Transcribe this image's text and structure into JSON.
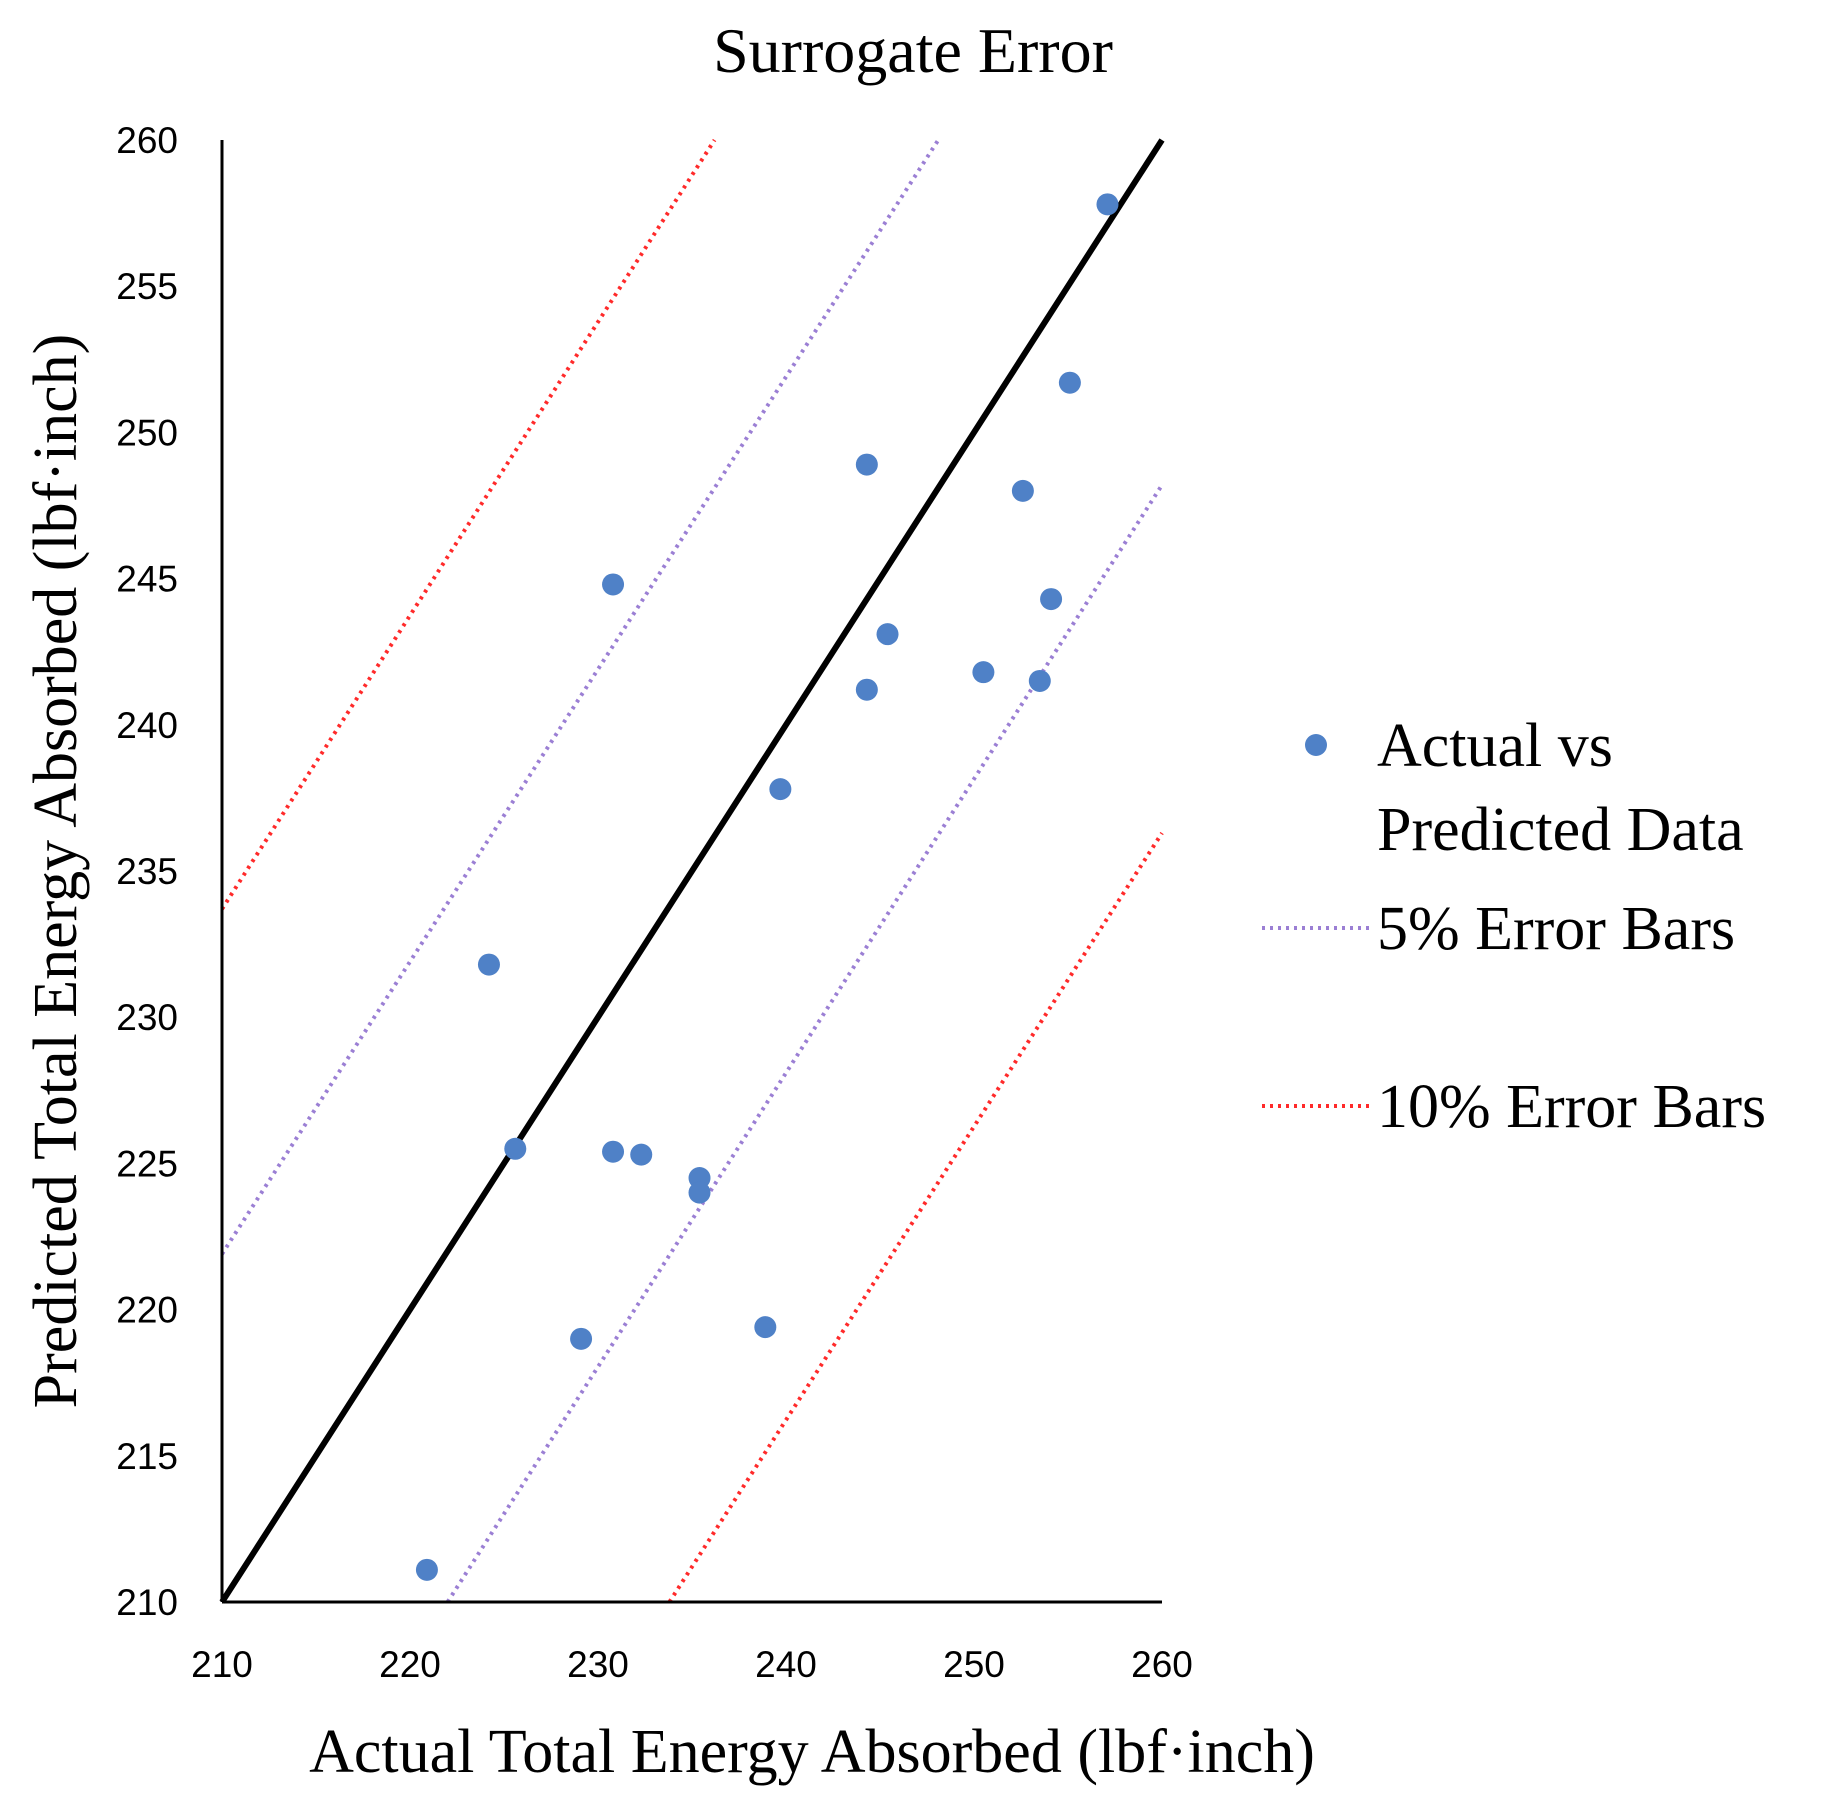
{
  "chart_data": {
    "type": "scatter",
    "title": "Surrogate Error",
    "xlabel": "Actual Total Energy Absorbed (lbf·inch)",
    "ylabel": "Predicted Total Energy Absorbed (lbf·inch)",
    "xlim": [
      210,
      260
    ],
    "ylim": [
      210,
      260
    ],
    "x_ticks": [
      "210",
      "220",
      "230",
      "240",
      "250",
      "260"
    ],
    "y_ticks": [
      "210",
      "215",
      "220",
      "225",
      "230",
      "235",
      "240",
      "245",
      "250",
      "255",
      "260"
    ],
    "grid": false,
    "legend_position": "right",
    "series": [
      {
        "name": "Actual vs Predicted Data",
        "legend_lines": [
          "Actual vs",
          "Predicted Data"
        ],
        "kind": "points",
        "color": "#4f81c7",
        "points": [
          {
            "x": 220.9,
            "y": 211.1
          },
          {
            "x": 224.2,
            "y": 231.8
          },
          {
            "x": 225.6,
            "y": 225.5
          },
          {
            "x": 229.1,
            "y": 219.0
          },
          {
            "x": 230.8,
            "y": 244.8
          },
          {
            "x": 230.8,
            "y": 225.4
          },
          {
            "x": 232.3,
            "y": 225.3
          },
          {
            "x": 235.4,
            "y": 224.5
          },
          {
            "x": 235.4,
            "y": 224.0
          },
          {
            "x": 238.9,
            "y": 219.4
          },
          {
            "x": 239.7,
            "y": 237.8
          },
          {
            "x": 244.3,
            "y": 248.9
          },
          {
            "x": 244.3,
            "y": 241.2
          },
          {
            "x": 245.4,
            "y": 243.1
          },
          {
            "x": 250.5,
            "y": 241.8
          },
          {
            "x": 252.6,
            "y": 248.0
          },
          {
            "x": 253.5,
            "y": 241.5
          },
          {
            "x": 254.1,
            "y": 244.3
          },
          {
            "x": 255.1,
            "y": 251.7
          },
          {
            "x": 257.1,
            "y": 257.8
          }
        ]
      },
      {
        "name": "",
        "kind": "line",
        "style": "solid",
        "color": "#000000",
        "points": [
          {
            "x": 210,
            "y": 210
          },
          {
            "x": 260,
            "y": 260
          }
        ]
      },
      {
        "name": "5% Error Bars",
        "kind": "line",
        "style": "dotted",
        "color": "#9b7fd4",
        "segments": [
          [
            {
              "x": 210,
              "y": 221.9
            },
            {
              "x": 248.1,
              "y": 260
            }
          ],
          [
            {
              "x": 222.0,
              "y": 210
            },
            {
              "x": 260,
              "y": 248.2
            }
          ]
        ]
      },
      {
        "name": "10% Error Bars",
        "kind": "line",
        "style": "dotted",
        "color": "#ff2a2a",
        "segments": [
          [
            {
              "x": 210,
              "y": 233.7
            },
            {
              "x": 236.2,
              "y": 260
            }
          ],
          [
            {
              "x": 233.8,
              "y": 210
            },
            {
              "x": 260,
              "y": 236.3
            }
          ]
        ]
      }
    ]
  }
}
